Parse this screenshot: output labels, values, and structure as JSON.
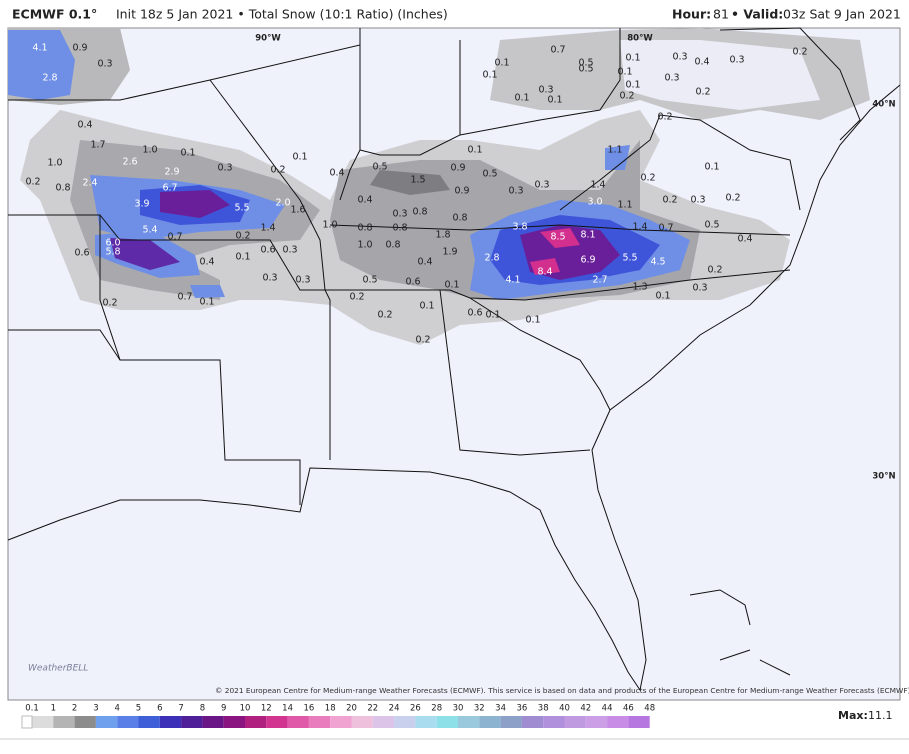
{
  "header": {
    "model": "ECMWF 0.1°",
    "run": "Init 18z 5 Jan 2021 • Total Snow (10:1 Ratio) (Inches)",
    "hour_label": "Hour:",
    "hour": "81",
    "valid_label": "• Valid:",
    "valid": "03z Sat 9 Jan 2021"
  },
  "map": {
    "graticule": [
      "90°W",
      "80°W",
      "40°N",
      "30°N"
    ],
    "snow_labels": [
      "4.1",
      "0.9",
      "0.3",
      "2.8",
      "0.4",
      "1.7",
      "1.0",
      "0.1",
      "2.6",
      "2.9",
      "0.3",
      "1.0",
      "0.2",
      "0.8",
      "2.4",
      "6.7",
      "3.9",
      "5.5",
      "2.0",
      "1.6",
      "5.4",
      "0.7",
      "0.2",
      "1.4",
      "1.0",
      "6.0",
      "5.8",
      "0.6",
      "0.6",
      "0.3",
      "0.1",
      "0.4",
      "0.3",
      "0.3",
      "0.2",
      "0.7",
      "0.1",
      "0.1",
      "0.2",
      "0.4",
      "0.5",
      "1.5",
      "0.9",
      "0.5",
      "0.1",
      "0.9",
      "0.3",
      "0.3",
      "0.4",
      "0.3",
      "0.8",
      "0.8",
      "0.8",
      "0.8",
      "1.0",
      "0.8",
      "1.8",
      "1.9",
      "0.4",
      "0.5",
      "0.6",
      "0.1",
      "0.2",
      "0.2",
      "0.1",
      "0.6",
      "0.1",
      "0.2",
      "0.1",
      "3.8",
      "8.5",
      "8.1",
      "2.8",
      "6.9",
      "5.5",
      "4.5",
      "8.4",
      "4.1",
      "2.7",
      "1.3",
      "0.1",
      "0.3",
      "0.2",
      "0.4",
      "1.4",
      "0.7",
      "0.5",
      "0.2",
      "0.3",
      "0.2",
      "3.0",
      "1.1",
      "1.4",
      "0.2",
      "1.1",
      "0.1",
      "0.1",
      "0.7",
      "0.5",
      "0.5",
      "0.1",
      "0.1",
      "0.1",
      "0.3",
      "0.4",
      "0.3",
      "0.2",
      "0.3",
      "0.2",
      "0.2",
      "0.1",
      "0.3",
      "0.1",
      "0.1",
      "0.2"
    ]
  },
  "footer": {
    "copyright": "© 2021 European Centre for Medium-range Weather Forecasts (ECMWF). This service is based on data and products of the European Centre for Medium-range Weather Forecasts (ECMWF).",
    "logo": "WeatherBELL",
    "legend_ticks": [
      "0.1",
      "1",
      "2",
      "3",
      "4",
      "5",
      "6",
      "7",
      "8",
      "9",
      "10",
      "12",
      "14",
      "16",
      "18",
      "20",
      "22",
      "24",
      "26",
      "28",
      "30",
      "32",
      "34",
      "36",
      "38",
      "40",
      "42",
      "44",
      "46",
      "48"
    ],
    "max_label": "Max:",
    "max": "11.1"
  }
}
